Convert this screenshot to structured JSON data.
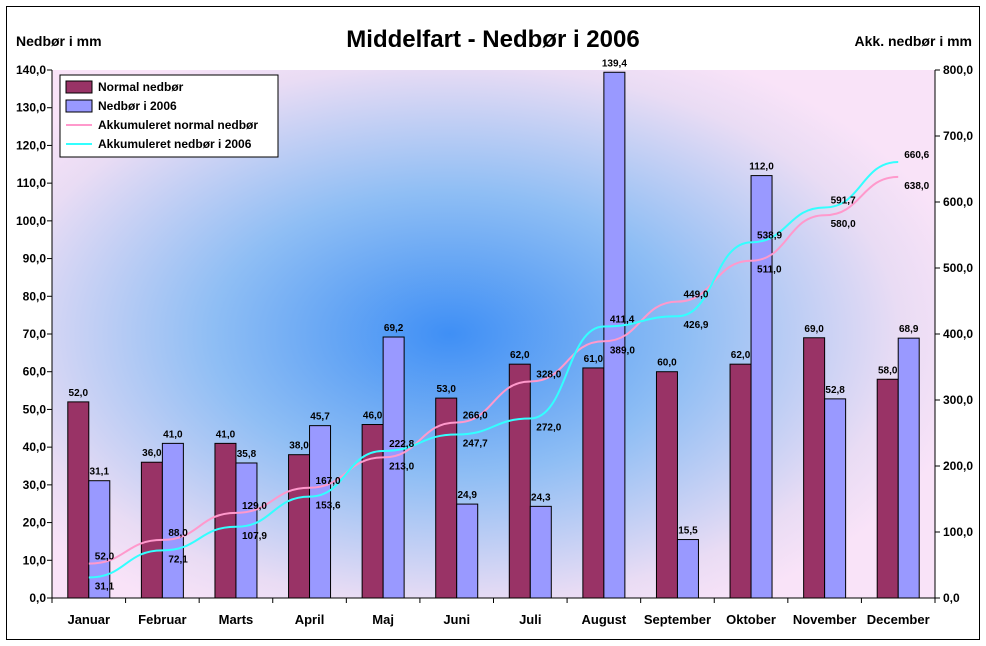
{
  "chart_data": {
    "type": "bar",
    "title": "Middelfart - Nedbør i 2006",
    "ylabel": "Nedbør i mm",
    "y2label": "Akk. nedbør i mm",
    "ylim": [
      0,
      140
    ],
    "y2lim": [
      0,
      800
    ],
    "yticks": [
      "0,0",
      "10,0",
      "20,0",
      "30,0",
      "40,0",
      "50,0",
      "60,0",
      "70,0",
      "80,0",
      "90,0",
      "100,0",
      "110,0",
      "120,0",
      "130,0",
      "140,0"
    ],
    "y2ticks": [
      "0,0",
      "100,0",
      "200,0",
      "300,0",
      "400,0",
      "500,0",
      "600,0",
      "700,0",
      "800,0"
    ],
    "categories": [
      "Januar",
      "Februar",
      "Marts",
      "April",
      "Maj",
      "Juni",
      "Juli",
      "August",
      "September",
      "Oktober",
      "November",
      "December"
    ],
    "legend_position": "top-left",
    "grid": false,
    "series": [
      {
        "name": "Normal nedbør",
        "kind": "bar",
        "axis": "left",
        "color": "#993366",
        "values": [
          52.0,
          36.0,
          41.0,
          38.0,
          46.0,
          53.0,
          62.0,
          61.0,
          60.0,
          62.0,
          69.0,
          58.0
        ],
        "labels": [
          "52,0",
          "36,0",
          "41,0",
          "38,0",
          "46,0",
          "53,0",
          "62,0",
          "61,0",
          "60,0",
          "62,0",
          "69,0",
          "58,0"
        ]
      },
      {
        "name": "Nedbør i 2006",
        "kind": "bar",
        "axis": "left",
        "color": "#9999FF",
        "values": [
          31.1,
          41.0,
          35.8,
          45.7,
          69.2,
          24.9,
          24.3,
          139.4,
          15.5,
          112.0,
          52.8,
          68.9
        ],
        "labels": [
          "31,1",
          "41,0",
          "35,8",
          "45,7",
          "69,2",
          "24,9",
          "24,3",
          "139,4",
          "15,5",
          "112,0",
          "52,8",
          "68,9"
        ]
      },
      {
        "name": "Akkumuleret normal nedbør",
        "kind": "line",
        "axis": "right",
        "color": "#FF99CC",
        "values": [
          52.0,
          88.0,
          129.0,
          167.0,
          213.0,
          266.0,
          328.0,
          389.0,
          449.0,
          511.0,
          580.0,
          638.0
        ],
        "labels": [
          "52,0",
          "88,0",
          "129,0",
          "167,0",
          "213,0",
          "266,0",
          "328,0",
          "389,0",
          "449,0",
          "511,0",
          "580,0",
          "638,0"
        ]
      },
      {
        "name": "Akkumuleret nedbør i 2006",
        "kind": "line",
        "axis": "right",
        "color": "#33FFFF",
        "values": [
          31.1,
          72.1,
          107.9,
          153.6,
          222.8,
          247.7,
          272.0,
          411.4,
          426.9,
          538.9,
          591.7,
          660.6
        ],
        "labels": [
          "31,1",
          "72,1",
          "107,9",
          "153,6",
          "222,8",
          "247,7",
          "272,0",
          "411,4",
          "426,9",
          "538,9",
          "591,7",
          "660,6"
        ]
      }
    ]
  }
}
